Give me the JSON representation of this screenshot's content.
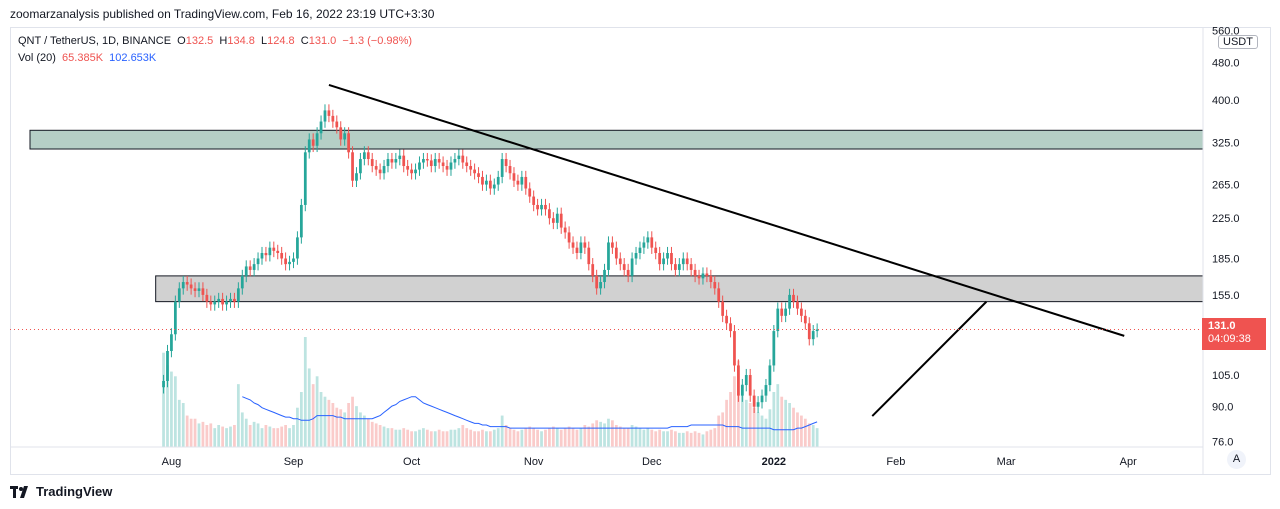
{
  "header": {
    "publisher": "zoomarzanalysis published on TradingView.com, Feb 16, 2022 23:19 UTC+3:30"
  },
  "legend": {
    "symbol": "QNT / TetherUS, 1D, BINANCE",
    "open_label": "O",
    "open": "132.5",
    "high_label": "H",
    "high": "134.8",
    "low_label": "L",
    "low": "124.8",
    "close_label": "C",
    "close": "131.0",
    "change": "−1.3 (−0.98%)",
    "vol_label": "Vol (20)",
    "vol_value": "65.385K",
    "vol_ma": "102.653K"
  },
  "price_axis": {
    "currency": "USDT",
    "current_price": "131.0",
    "countdown": "04:09:38"
  },
  "auto_button": "A",
  "brand": "TradingView",
  "colors": {
    "up": "#26a69a",
    "down": "#ef5350",
    "zone_resistance": "#b5cfc6",
    "zone_support": "#d1d1d1",
    "volume_ma": "#2962ff",
    "price_line": "#ef5350"
  },
  "chart_data": {
    "type": "candlestick",
    "scale": "log",
    "ylim": [
      74,
      570
    ],
    "y_ticks": [
      76.0,
      90.0,
      105.0,
      130.0,
      155.0,
      185.0,
      225.0,
      265.0,
      325.0,
      400.0,
      480.0,
      560.0
    ],
    "y_tick_labels": [
      "76.0",
      "90.0",
      "105.0",
      "130.0",
      "155.0",
      "185.0",
      "225.0",
      "265.0",
      "325.0",
      "400.0",
      "480.0",
      "560.0"
    ],
    "x_tick_dates": [
      "2021-08-01",
      "2021-09-01",
      "2021-10-01",
      "2021-11-01",
      "2021-12-01",
      "2022-01-01",
      "2022-02-01",
      "2022-03-01",
      "2022-04-01"
    ],
    "x_tick_labels": [
      "Aug",
      "Sep",
      "Oct",
      "Nov",
      "Dec",
      "2022",
      "Feb",
      "Mar",
      "Apr"
    ],
    "x_range": [
      "2021-06-21",
      "2022-04-20"
    ],
    "last_close": 131.0,
    "closes_start_date": "2021-07-30",
    "closes": [
      102,
      118,
      128,
      150,
      160,
      165,
      163,
      160,
      158,
      160,
      155,
      150,
      148,
      150,
      152,
      148,
      150,
      152,
      150,
      160,
      170,
      178,
      175,
      180,
      185,
      190,
      188,
      195,
      192,
      190,
      185,
      180,
      182,
      185,
      205,
      240,
      310,
      330,
      320,
      340,
      360,
      380,
      370,
      360,
      350,
      330,
      340,
      310,
      270,
      280,
      300,
      310,
      300,
      290,
      285,
      280,
      290,
      300,
      295,
      300,
      305,
      290,
      285,
      280,
      285,
      295,
      300,
      298,
      290,
      300,
      295,
      290,
      285,
      295,
      300,
      305,
      295,
      290,
      285,
      280,
      275,
      265,
      270,
      260,
      265,
      275,
      300,
      290,
      280,
      270,
      265,
      275,
      260,
      250,
      240,
      235,
      240,
      235,
      225,
      220,
      230,
      215,
      210,
      200,
      195,
      190,
      200,
      195,
      180,
      170,
      160,
      165,
      175,
      200,
      195,
      185,
      180,
      175,
      170,
      185,
      190,
      195,
      200,
      205,
      195,
      190,
      180,
      185,
      190,
      180,
      175,
      180,
      185,
      180,
      175,
      170,
      168,
      172,
      170,
      165,
      160,
      150,
      140,
      135,
      130,
      110,
      95,
      100,
      105,
      95,
      90,
      92,
      95,
      100,
      110,
      130,
      145,
      140,
      145,
      155,
      150,
      145,
      140,
      135,
      125,
      130,
      131
    ],
    "volumes": [
      60,
      52,
      48,
      45,
      30,
      28,
      20,
      18,
      18,
      15,
      16,
      14,
      15,
      12,
      14,
      13,
      12,
      13,
      14,
      40,
      22,
      18,
      14,
      16,
      15,
      12,
      14,
      13,
      12,
      12,
      13,
      14,
      12,
      14,
      25,
      35,
      70,
      50,
      40,
      45,
      35,
      32,
      30,
      28,
      25,
      24,
      22,
      28,
      32,
      26,
      22,
      20,
      18,
      16,
      15,
      14,
      13,
      12,
      12,
      11,
      11,
      12,
      11,
      10,
      10,
      11,
      12,
      11,
      10,
      10,
      11,
      10,
      10,
      11,
      11,
      12,
      14,
      12,
      11,
      10,
      10,
      11,
      10,
      10,
      11,
      12,
      20,
      14,
      12,
      11,
      10,
      11,
      12,
      13,
      12,
      11,
      10,
      11,
      12,
      13,
      12,
      11,
      12,
      13,
      12,
      11,
      12,
      14,
      13,
      15,
      17,
      16,
      15,
      18,
      17,
      14,
      13,
      12,
      12,
      14,
      13,
      12,
      11,
      12,
      11,
      10,
      11,
      10,
      10,
      11,
      10,
      9,
      9,
      10,
      9,
      10,
      9,
      8,
      10,
      11,
      12,
      20,
      22,
      30,
      35,
      45,
      55,
      40,
      30,
      28,
      25,
      22,
      20,
      18,
      24,
      35,
      40,
      32,
      30,
      28,
      25,
      22,
      20,
      18,
      15,
      14,
      12
    ],
    "volume_ma_values": [
      32,
      31,
      30,
      28,
      27,
      25,
      24,
      23,
      22,
      21,
      20,
      19,
      19,
      18,
      18,
      17,
      17,
      17,
      18,
      20,
      20,
      20,
      20,
      20,
      19,
      19,
      18,
      18,
      18,
      18,
      18,
      18,
      18,
      18,
      19,
      20,
      22,
      24,
      26,
      27,
      29,
      30,
      31,
      32,
      32,
      30,
      28,
      27,
      26,
      25,
      24,
      23,
      22,
      21,
      20,
      19,
      18,
      17,
      16,
      15,
      15,
      14,
      14,
      13,
      13,
      13,
      13,
      13,
      12,
      12,
      12,
      12,
      12,
      12,
      12,
      12,
      12,
      12,
      12,
      12,
      12,
      12,
      12,
      12,
      12,
      12,
      12,
      12,
      12,
      12,
      12,
      12,
      12,
      12,
      12,
      12,
      12,
      12,
      12,
      12,
      12,
      12,
      12,
      12,
      12,
      12,
      12,
      12,
      12,
      13,
      13,
      13,
      13,
      13,
      14,
      14,
      14,
      14,
      14,
      14,
      14,
      14,
      14,
      13,
      13,
      13,
      13,
      12,
      12,
      12,
      12,
      12,
      12,
      12,
      12,
      11,
      11,
      11,
      11,
      11,
      11,
      12,
      12,
      13,
      14,
      15,
      16,
      17,
      18,
      18,
      19,
      20,
      20,
      21,
      22,
      23,
      24,
      24,
      25,
      25,
      26,
      25,
      25,
      24,
      23,
      22,
      21
    ]
  },
  "drawings": {
    "resistance_zone": {
      "low": 315,
      "high": 345,
      "from": "2021-06-21",
      "to": "2022-04-20"
    },
    "support_zone": {
      "low": 150,
      "high": 170,
      "from": "2021-07-28",
      "to": "2022-04-20"
    },
    "downtrend_line": {
      "p1": {
        "date": "2021-09-10",
        "price": 430
      },
      "p2": {
        "date": "2022-03-31",
        "price": 127
      }
    },
    "uptrend_line": {
      "p1": {
        "date": "2022-01-26",
        "price": 86
      },
      "p2": {
        "date": "2022-02-24",
        "price": 150
      }
    }
  }
}
